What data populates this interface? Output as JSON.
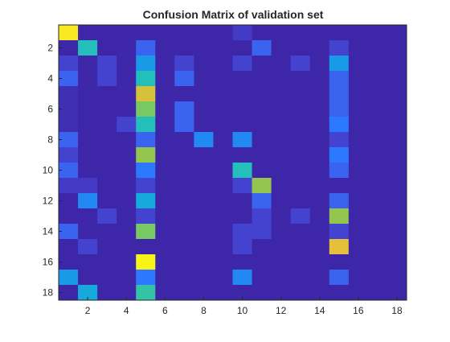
{
  "chart_data": {
    "type": "heatmap",
    "title": "Confusion Matrix of validation set",
    "xlabel": "",
    "ylabel": "",
    "xlim": [
      0.5,
      18.5
    ],
    "ylim": [
      0.5,
      18.5
    ],
    "y_reversed": true,
    "colormap": "parula",
    "color_range": [
      0,
      1
    ],
    "grid": false,
    "legend": "none",
    "x_ticks": [
      2,
      4,
      6,
      8,
      10,
      12,
      14,
      16,
      18
    ],
    "y_ticks": [
      2,
      4,
      6,
      8,
      10,
      12,
      14,
      16,
      18
    ],
    "rows": 18,
    "cols": 18,
    "values": [
      [
        0.97,
        0.1,
        0.1,
        0.1,
        0.1,
        0.1,
        0.1,
        0.1,
        0.1,
        0.15,
        0.1,
        0.1,
        0.1,
        0.1,
        0.1,
        0.1,
        0.1,
        0.1
      ],
      [
        0.1,
        0.55,
        0.1,
        0.1,
        0.25,
        0.1,
        0.1,
        0.1,
        0.1,
        0.1,
        0.25,
        0.1,
        0.1,
        0.1,
        0.17,
        0.1,
        0.1,
        0.1
      ],
      [
        0.17,
        0.1,
        0.17,
        0.1,
        0.4,
        0.1,
        0.17,
        0.1,
        0.1,
        0.17,
        0.1,
        0.1,
        0.17,
        0.1,
        0.4,
        0.1,
        0.1,
        0.1
      ],
      [
        0.25,
        0.1,
        0.17,
        0.1,
        0.55,
        0.1,
        0.25,
        0.1,
        0.1,
        0.1,
        0.1,
        0.1,
        0.1,
        0.1,
        0.25,
        0.1,
        0.1,
        0.1
      ],
      [
        0.12,
        0.1,
        0.1,
        0.1,
        0.85,
        0.1,
        0.1,
        0.1,
        0.1,
        0.1,
        0.1,
        0.1,
        0.1,
        0.1,
        0.25,
        0.1,
        0.1,
        0.1
      ],
      [
        0.12,
        0.1,
        0.1,
        0.1,
        0.7,
        0.1,
        0.25,
        0.1,
        0.1,
        0.1,
        0.1,
        0.1,
        0.1,
        0.1,
        0.25,
        0.1,
        0.1,
        0.1
      ],
      [
        0.12,
        0.1,
        0.1,
        0.17,
        0.55,
        0.1,
        0.25,
        0.1,
        0.1,
        0.1,
        0.1,
        0.1,
        0.1,
        0.1,
        0.3,
        0.1,
        0.1,
        0.1
      ],
      [
        0.25,
        0.1,
        0.1,
        0.1,
        0.25,
        0.1,
        0.1,
        0.35,
        0.1,
        0.35,
        0.1,
        0.1,
        0.1,
        0.1,
        0.17,
        0.1,
        0.1,
        0.1
      ],
      [
        0.17,
        0.1,
        0.1,
        0.1,
        0.75,
        0.1,
        0.1,
        0.1,
        0.1,
        0.1,
        0.1,
        0.1,
        0.1,
        0.1,
        0.3,
        0.1,
        0.1,
        0.1
      ],
      [
        0.25,
        0.1,
        0.1,
        0.1,
        0.3,
        0.1,
        0.1,
        0.1,
        0.1,
        0.55,
        0.1,
        0.1,
        0.1,
        0.1,
        0.25,
        0.1,
        0.1,
        0.1
      ],
      [
        0.15,
        0.15,
        0.1,
        0.1,
        0.17,
        0.1,
        0.1,
        0.1,
        0.1,
        0.17,
        0.75,
        0.1,
        0.1,
        0.1,
        0.1,
        0.1,
        0.1,
        0.1
      ],
      [
        0.1,
        0.35,
        0.1,
        0.1,
        0.45,
        0.1,
        0.1,
        0.1,
        0.1,
        0.1,
        0.25,
        0.1,
        0.1,
        0.1,
        0.25,
        0.1,
        0.1,
        0.1
      ],
      [
        0.1,
        0.1,
        0.17,
        0.1,
        0.17,
        0.1,
        0.1,
        0.1,
        0.1,
        0.1,
        0.17,
        0.1,
        0.17,
        0.1,
        0.75,
        0.1,
        0.1,
        0.1
      ],
      [
        0.25,
        0.1,
        0.1,
        0.1,
        0.7,
        0.1,
        0.1,
        0.1,
        0.1,
        0.17,
        0.17,
        0.1,
        0.1,
        0.1,
        0.17,
        0.1,
        0.1,
        0.1
      ],
      [
        0.1,
        0.17,
        0.1,
        0.1,
        0.1,
        0.1,
        0.1,
        0.1,
        0.1,
        0.17,
        0.1,
        0.1,
        0.1,
        0.1,
        0.87,
        0.1,
        0.1,
        0.1
      ],
      [
        0.1,
        0.1,
        0.1,
        0.1,
        0.99,
        0.1,
        0.1,
        0.1,
        0.1,
        0.1,
        0.1,
        0.1,
        0.1,
        0.1,
        0.1,
        0.1,
        0.1,
        0.1
      ],
      [
        0.4,
        0.1,
        0.1,
        0.1,
        0.3,
        0.1,
        0.1,
        0.1,
        0.1,
        0.35,
        0.1,
        0.1,
        0.1,
        0.1,
        0.25,
        0.1,
        0.1,
        0.1
      ],
      [
        0.1,
        0.45,
        0.1,
        0.1,
        0.6,
        0.1,
        0.1,
        0.1,
        0.1,
        0.1,
        0.1,
        0.1,
        0.1,
        0.1,
        0.1,
        0.1,
        0.1,
        0.1
      ]
    ]
  }
}
